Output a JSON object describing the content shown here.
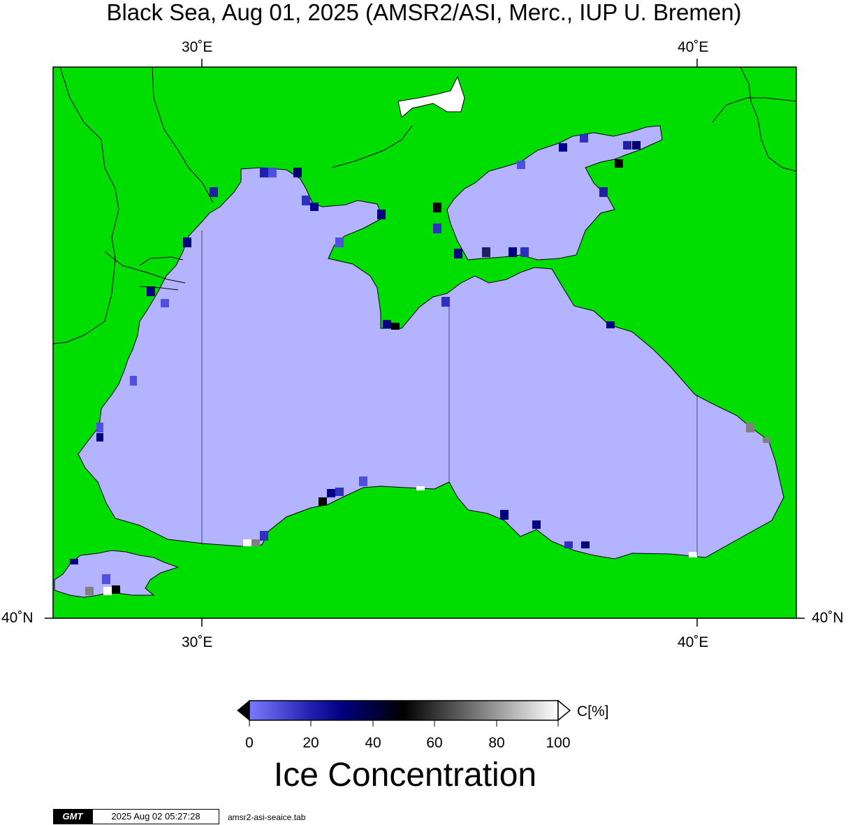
{
  "title": "Black Sea, Aug 01, 2025 (AMSR2/ASI, Merc., IUP U. Bremen)",
  "map": {
    "lon_labels_top": [
      "30˚E",
      "40˚E"
    ],
    "lon_labels_bottom": [
      "30˚E",
      "40˚E"
    ],
    "lat_label_left": "40˚N",
    "lat_label_right": "40˚N",
    "colors": {
      "land": "#00dd00",
      "sea": "#b3b3ff",
      "coast": "#000000",
      "gridline": "#000000"
    }
  },
  "colorbar": {
    "unit": "C[%]",
    "ticks": [
      "0",
      "20",
      "40",
      "60",
      "80",
      "100"
    ],
    "title": "Ice Concentration",
    "colors": {
      "low": "#7a7aff",
      "mid_low": "#000080",
      "mid": "#000000",
      "high": "#ffffff"
    }
  },
  "footer": {
    "logo": "GMT",
    "timestamp": "2025 Aug 02 05:27:28",
    "file": "amsr2-asi-seaice.tab"
  }
}
